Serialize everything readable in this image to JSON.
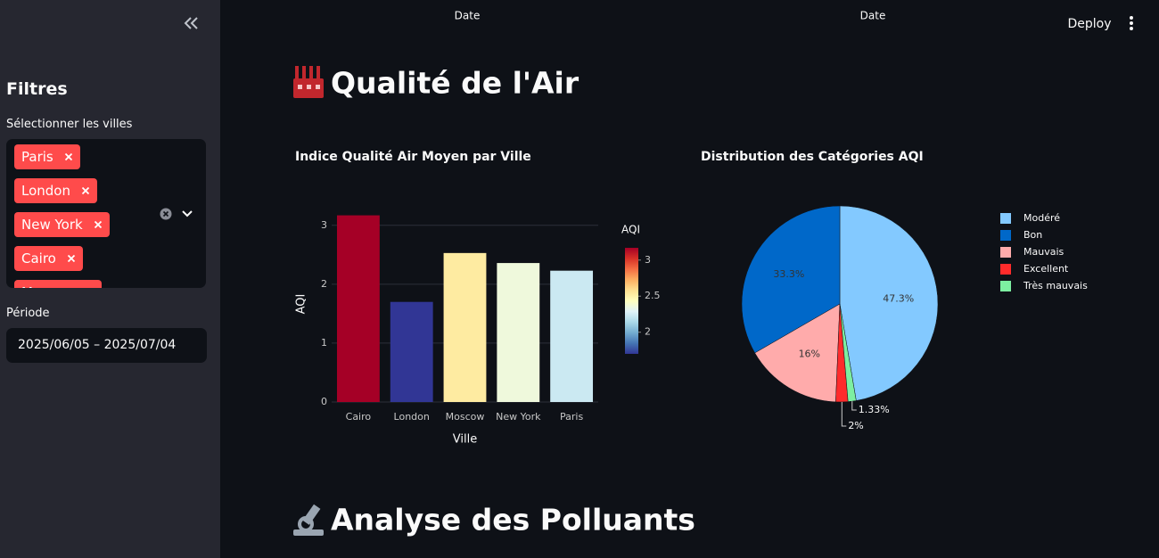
{
  "header": {
    "date_labels": [
      "Date",
      "Date"
    ],
    "deploy": "Deploy"
  },
  "sidebar": {
    "title": "Filtres",
    "cities_label": "Sélectionner les villes",
    "cities": [
      "Paris",
      "London",
      "New York",
      "Cairo",
      "Moscow"
    ],
    "period_label": "Période",
    "period": "2025/06/05 – 2025/07/04"
  },
  "main": {
    "title": "Qualité de l'Air",
    "section_title": "Analyse des Polluants"
  },
  "chart_data": [
    {
      "type": "bar",
      "title": "Indice Qualité Air Moyen par Ville",
      "x_label": "Ville",
      "y_label": "AQI",
      "categories": [
        "Cairo",
        "London",
        "Moscow",
        "New York",
        "Paris"
      ],
      "values": [
        3.17,
        1.7,
        2.53,
        2.36,
        2.23
      ],
      "ylim": [
        0,
        3.33
      ],
      "yticks": [
        0,
        1,
        2,
        3
      ],
      "grid": true,
      "colorbar": {
        "title": "AQI",
        "clim": [
          1.7,
          3.17
        ],
        "ticks": [
          2,
          2.5,
          3
        ],
        "colorscale": [
          [
            0,
            "#313695"
          ],
          [
            0.1,
            "#4575b4"
          ],
          [
            0.2,
            "#74add1"
          ],
          [
            0.3,
            "#abd9e9"
          ],
          [
            0.4,
            "#e0f3f8"
          ],
          [
            0.5,
            "#ffffbf"
          ],
          [
            0.6,
            "#fee090"
          ],
          [
            0.7,
            "#fdae61"
          ],
          [
            0.8,
            "#f46d43"
          ],
          [
            0.9,
            "#d73027"
          ],
          [
            1,
            "#a50026"
          ]
        ]
      }
    },
    {
      "type": "pie",
      "title": "Distribution des Catégories AQI",
      "categories": [
        "Modéré",
        "Bon",
        "Mauvais",
        "Excellent",
        "Très mauvais"
      ],
      "values": [
        47.3,
        33.3,
        16,
        2,
        1.33
      ],
      "value_labels": [
        "47.3%",
        "33.3%",
        "16%",
        "2%",
        "1.33%"
      ],
      "colors": [
        "#83c9ff",
        "#0068c9",
        "#ffabab",
        "#ff2b2b",
        "#7defa1"
      ],
      "direction": "counterclockwise",
      "legend": "right"
    }
  ]
}
